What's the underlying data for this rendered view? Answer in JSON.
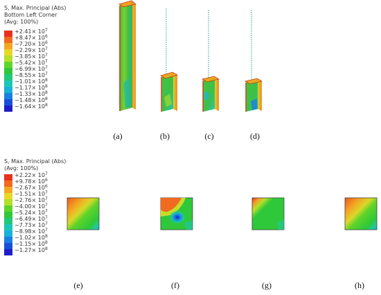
{
  "legend_top": {
    "title_lines": [
      "S, Max. Principal (Abs)",
      "Bottom Left Corner",
      "(Avg: 100%)"
    ],
    "labels": [
      "+2.41× 10^7",
      "+8.47× 10^6",
      "−7.20× 10^6",
      "−2.29× 10^7",
      "−3.85× 10^7",
      "−5.42× 10^7",
      "−6.99× 10^7",
      "−8.55× 10^7",
      "−1.01× 10^8",
      "−1.17× 10^8",
      "−1.33× 10^8",
      "−1.48× 10^8",
      "−1.64× 10^8"
    ]
  },
  "legend_bottom": {
    "title_lines": [
      "S, Max. Principal (Abs)",
      "(Avg: 100%)"
    ],
    "labels": [
      "+2.22× 10^7",
      "+9.78× 10^6",
      "−2.67× 10^6",
      "−1.51× 10^7",
      "−2.76× 10^7",
      "−4.00× 10^7",
      "−5.24× 10^7",
      "−6.49× 10^7",
      "−7.73× 10^7",
      "−8.98× 10^7",
      "−1.02× 10^8",
      "−1.15× 10^8",
      "−1.27× 10^8"
    ]
  },
  "colors": {
    "scale": [
      "#e8301f",
      "#f06a1f",
      "#f5a623",
      "#e8d82a",
      "#b5df2a",
      "#5fd42a",
      "#2ec83a",
      "#20c878",
      "#1bc7b6",
      "#18b2d8",
      "#1a80e0",
      "#1a4fd8",
      "#1e1ec8"
    ],
    "body": "#2ec83a",
    "wire": "#7fd0c8"
  },
  "captions_top": [
    "(a)",
    "(b)",
    "(c)",
    "(d)"
  ],
  "captions_bottom": [
    "(e)",
    "(f)",
    "(g)",
    "(h)"
  ]
}
